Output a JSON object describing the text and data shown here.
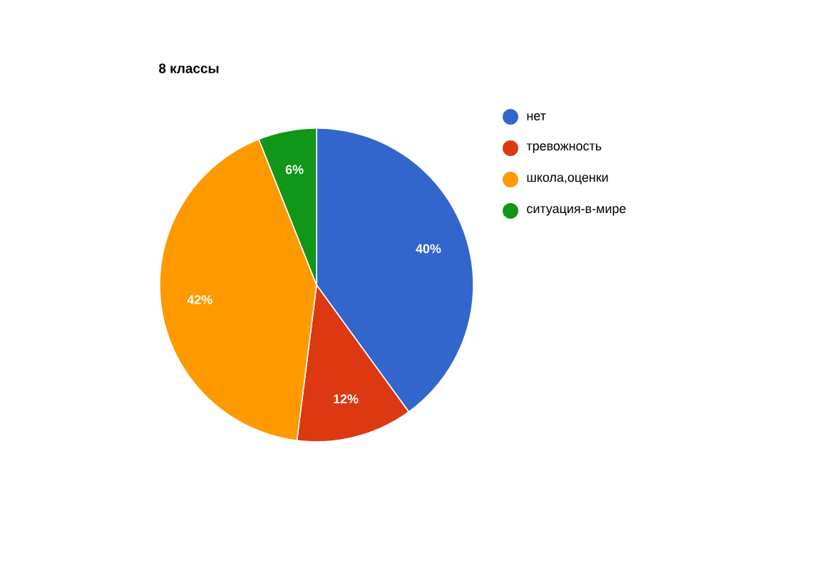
{
  "chart_data": {
    "type": "pie",
    "title": "8 классы",
    "categories": [
      "нет",
      "тревожность",
      "школа,оценки",
      "ситуация-в-мире"
    ],
    "values": [
      40,
      12,
      42,
      6
    ],
    "colors": [
      "#3366cc",
      "#dc3912",
      "#ff9900",
      "#109618"
    ],
    "value_labels": [
      "40%",
      "12%",
      "42%",
      "6%"
    ],
    "legend": "right"
  }
}
